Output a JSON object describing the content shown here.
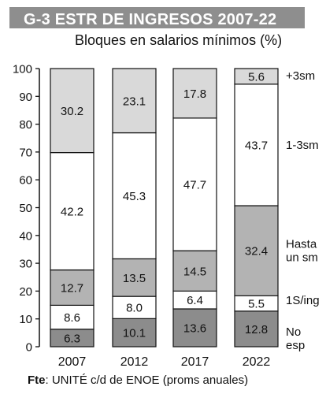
{
  "title": "G-3  ESTR DE INGRESOS 2007-22",
  "subtitle": "Bloques en salarios mínimos (%)",
  "source_prefix": "Fte",
  "source_rest": ": UNITÉ c/d de ENOE (proms anuales)",
  "colors": {
    "title_band": "#8e8e8e",
    "title_text": "#ffffff",
    "outline": "#111111"
  },
  "chart_data": {
    "type": "bar",
    "stacked": true,
    "categories": [
      "2007",
      "2012",
      "2017",
      "2022"
    ],
    "ylim": [
      0,
      100
    ],
    "yticks": [
      0,
      10,
      20,
      30,
      40,
      50,
      60,
      70,
      80,
      90,
      100
    ],
    "grid": false,
    "legend": "right-side labels",
    "series": [
      {
        "name": "No esp",
        "label_lines": [
          "No",
          "esp"
        ],
        "values": [
          6.3,
          10.1,
          13.6,
          12.8
        ],
        "labels": [
          "6.3",
          "10.1",
          "13.6",
          "12.8"
        ],
        "color": "#8c8c8c"
      },
      {
        "name": "1S/ing",
        "label_lines": [
          "1S/ing"
        ],
        "values": [
          8.6,
          8.0,
          6.4,
          5.5
        ],
        "labels": [
          "8.6",
          "8.0",
          "6.4",
          "5.5"
        ],
        "color": "#ffffff"
      },
      {
        "name": "Hasta un sm",
        "label_lines": [
          "Hasta",
          "un sm"
        ],
        "values": [
          12.7,
          13.5,
          14.5,
          32.4
        ],
        "labels": [
          "12.7",
          "13.5",
          "14.5",
          "32.4"
        ],
        "color": "#b3b3b3"
      },
      {
        "name": "1-3sm",
        "label_lines": [
          "1-3sm"
        ],
        "values": [
          42.2,
          45.3,
          47.7,
          43.7
        ],
        "labels": [
          "42.2",
          "45.3",
          "47.7",
          "43.7"
        ],
        "color": "#ffffff"
      },
      {
        "name": "+3sm",
        "label_lines": [
          "+3sm"
        ],
        "values": [
          30.2,
          23.1,
          17.8,
          5.6
        ],
        "labels": [
          "30.2",
          "23.1",
          "17.8",
          "5.6"
        ],
        "color": "#d9d9d9"
      }
    ]
  }
}
